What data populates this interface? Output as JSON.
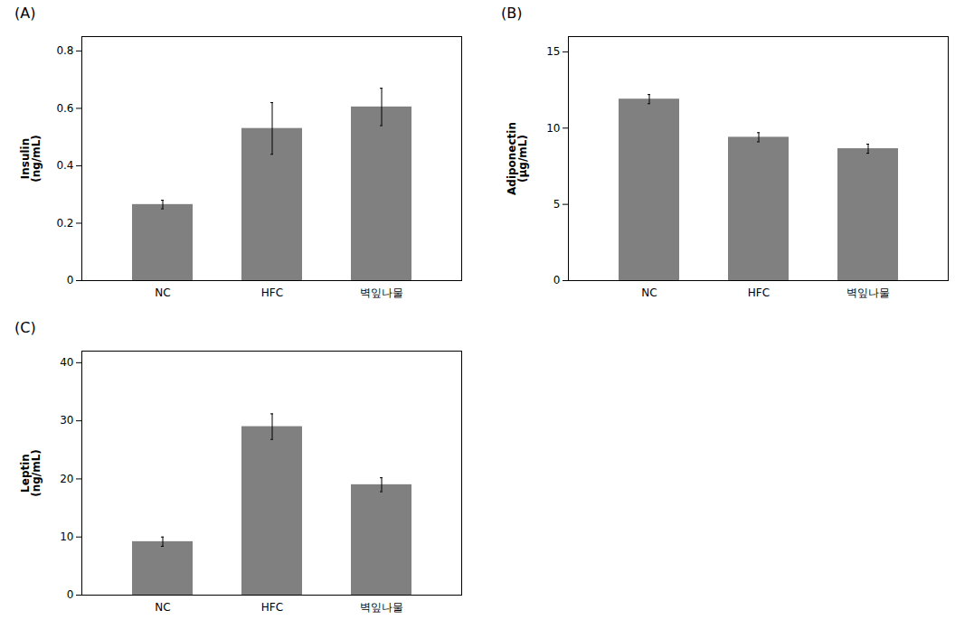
{
  "chart_data": [
    {
      "type": "bar",
      "title": "(A)",
      "categories": [
        "NC",
        "HFC",
        "벽잎나물"
      ],
      "values": [
        0.265,
        0.53,
        0.605
      ],
      "errors": [
        0.015,
        0.09,
        0.065
      ],
      "ylabel": "Insulin\n(ng/mL)",
      "color": "#808080",
      "ylim": [
        0,
        0.85
      ],
      "yticks": [
        0,
        0.2,
        0.4,
        0.6,
        0.8
      ],
      "grid": false
    },
    {
      "type": "bar",
      "title": "(B)",
      "categories": [
        "NC",
        "HFC",
        "벽잎나물"
      ],
      "values": [
        11.9,
        9.4,
        8.65
      ],
      "errors": [
        0.3,
        0.3,
        0.3
      ],
      "ylabel": "Adiponectin\n(μg/mL)",
      "color": "#808080",
      "ylim": [
        0,
        16
      ],
      "yticks": [
        0,
        5,
        10,
        15
      ],
      "grid": false
    },
    {
      "type": "bar",
      "title": "(C)",
      "categories": [
        "NC",
        "HFC",
        "벽잎나물"
      ],
      "values": [
        9.2,
        29.0,
        19.0
      ],
      "errors": [
        0.8,
        2.2,
        1.2
      ],
      "ylabel": "Leptin\n(ng/mL)",
      "color": "#808080",
      "ylim": [
        0,
        42
      ],
      "yticks": [
        0,
        10,
        20,
        30,
        40
      ],
      "grid": false
    }
  ]
}
